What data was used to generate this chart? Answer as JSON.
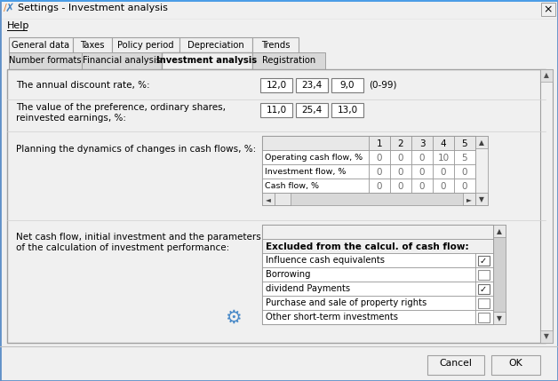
{
  "title": "Settings - Investment analysis",
  "bg_color": "#f0f0f0",
  "tab_row1": [
    "General data",
    "Taxes",
    "Policy period",
    "Depreciation",
    "Trends"
  ],
  "tab_row2": [
    "Number formats",
    "Financial analysis",
    "Investment analysis",
    "Registration"
  ],
  "active_tab": "Investment analysis",
  "help_text": "Help",
  "field1_label": "The annual discount rate, %:",
  "field1_values": [
    "12,0",
    "23,4",
    "9,0"
  ],
  "field1_suffix": "(0-99)",
  "field2_label": "The value of the preference, ordinary shares,\nreinvested earnings, %:",
  "field2_values": [
    "11,0",
    "25,4",
    "13,0"
  ],
  "field3_label": "Planning the dynamics of changes in cash flows, %:",
  "table_cols": [
    "1",
    "2",
    "3",
    "4",
    "5"
  ],
  "table_rows": [
    {
      "label": "Operating cash flow, %",
      "values": [
        "0",
        "0",
        "0",
        "10",
        "5"
      ]
    },
    {
      "label": "Investment flow, %",
      "values": [
        "0",
        "0",
        "0",
        "0",
        "0"
      ]
    },
    {
      "label": "Cash flow, %",
      "values": [
        "0",
        "0",
        "0",
        "0",
        "0"
      ]
    }
  ],
  "field4_label": "Net cash flow, initial investment and the parameters\nof the calculation of investment performance:",
  "excluded_header": "Excluded from the calcul. of cash flow:",
  "excluded_items": [
    {
      "label": "Influence cash equivalents",
      "checked": true
    },
    {
      "label": "Borrowing",
      "checked": false
    },
    {
      "label": "dividend Payments",
      "checked": true
    },
    {
      "label": "Purchase and sale of property rights",
      "checked": false
    },
    {
      "label": "Other short-term investments",
      "checked": false
    }
  ],
  "btn_cancel": "Cancel",
  "btn_ok": "OK"
}
